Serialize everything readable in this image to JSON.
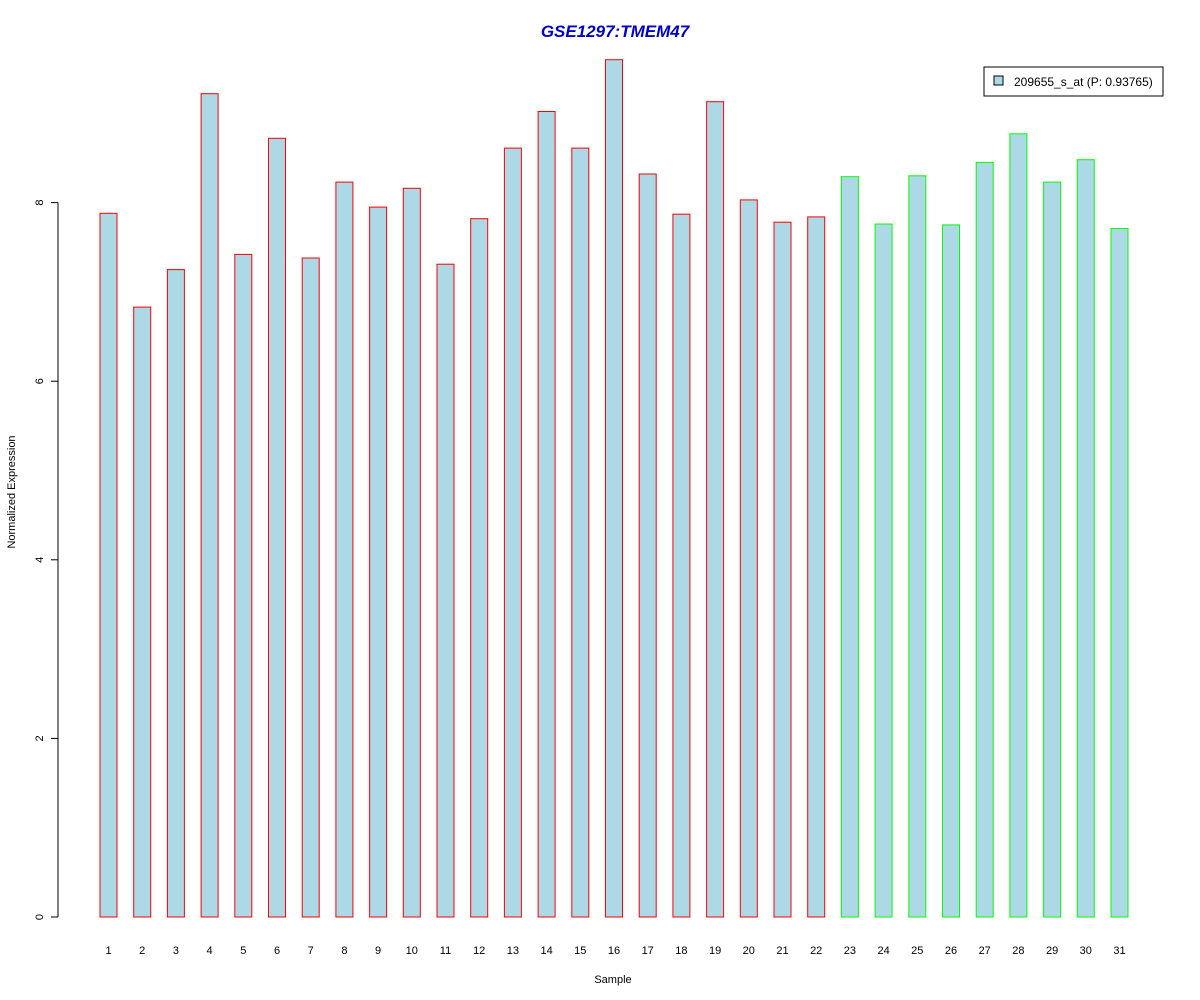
{
  "chart_data": {
    "type": "bar",
    "title": "GSE1297:TMEM47",
    "xlabel": "Sample",
    "ylabel": "Normalized Expression",
    "categories": [
      "1",
      "2",
      "3",
      "4",
      "5",
      "6",
      "7",
      "8",
      "9",
      "10",
      "11",
      "12",
      "13",
      "14",
      "15",
      "16",
      "17",
      "18",
      "19",
      "20",
      "21",
      "22",
      "23",
      "24",
      "25",
      "26",
      "27",
      "28",
      "29",
      "30",
      "31"
    ],
    "series": [
      {
        "name": "209655_s_at (P: 0.93765)",
        "values": [
          7.88,
          6.83,
          7.25,
          9.22,
          7.42,
          8.72,
          7.38,
          8.23,
          7.95,
          8.16,
          7.31,
          7.82,
          8.61,
          9.02,
          8.61,
          9.6,
          8.32,
          7.87,
          9.13,
          8.03,
          7.78,
          7.84,
          8.29,
          7.76,
          8.3,
          7.75,
          8.45,
          8.77,
          8.23,
          8.48,
          7.71
        ],
        "group": [
          "a",
          "a",
          "a",
          "a",
          "a",
          "a",
          "a",
          "a",
          "a",
          "a",
          "a",
          "a",
          "a",
          "a",
          "a",
          "a",
          "a",
          "a",
          "a",
          "a",
          "a",
          "a",
          "b",
          "b",
          "b",
          "b",
          "b",
          "b",
          "b",
          "b",
          "b"
        ]
      }
    ],
    "yticks": [
      0,
      2,
      4,
      6,
      8
    ],
    "ylim": [
      0,
      9.6
    ],
    "grid": false,
    "legend_position": "top-right",
    "colors": {
      "title": "#0000cc",
      "bar_fill": "#add8e6",
      "group_a_border": "#ff0000",
      "group_b_border": "#00ff00",
      "axis": "#000000"
    }
  }
}
